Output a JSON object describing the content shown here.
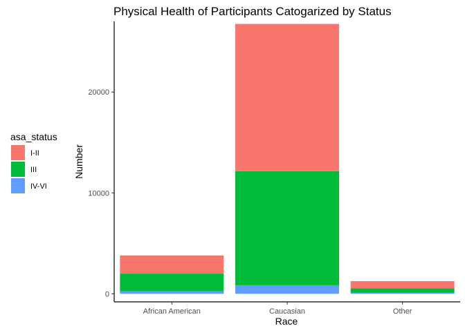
{
  "chart_data": {
    "type": "bar",
    "stacked": true,
    "title": "Physical Health of Participants Catogarized by Status",
    "xlabel": "Race",
    "ylabel": "Number",
    "categories": [
      "African American",
      "Caucasian",
      "Other"
    ],
    "series": [
      {
        "name": "I-II",
        "color": "#F8766D",
        "values": [
          1800,
          14600,
          700
        ]
      },
      {
        "name": "III",
        "color": "#00BA38",
        "values": [
          1750,
          11300,
          450
        ]
      },
      {
        "name": "IV-VI",
        "color": "#619CFF",
        "values": [
          250,
          850,
          100
        ]
      }
    ],
    "ylim": [
      -800,
      27000
    ],
    "yticks": [
      0,
      10000,
      20000
    ],
    "ytick_labels": [
      "0",
      "10000",
      "20000"
    ],
    "grid": false,
    "legend": {
      "title": "asa_status",
      "position": "left"
    }
  }
}
